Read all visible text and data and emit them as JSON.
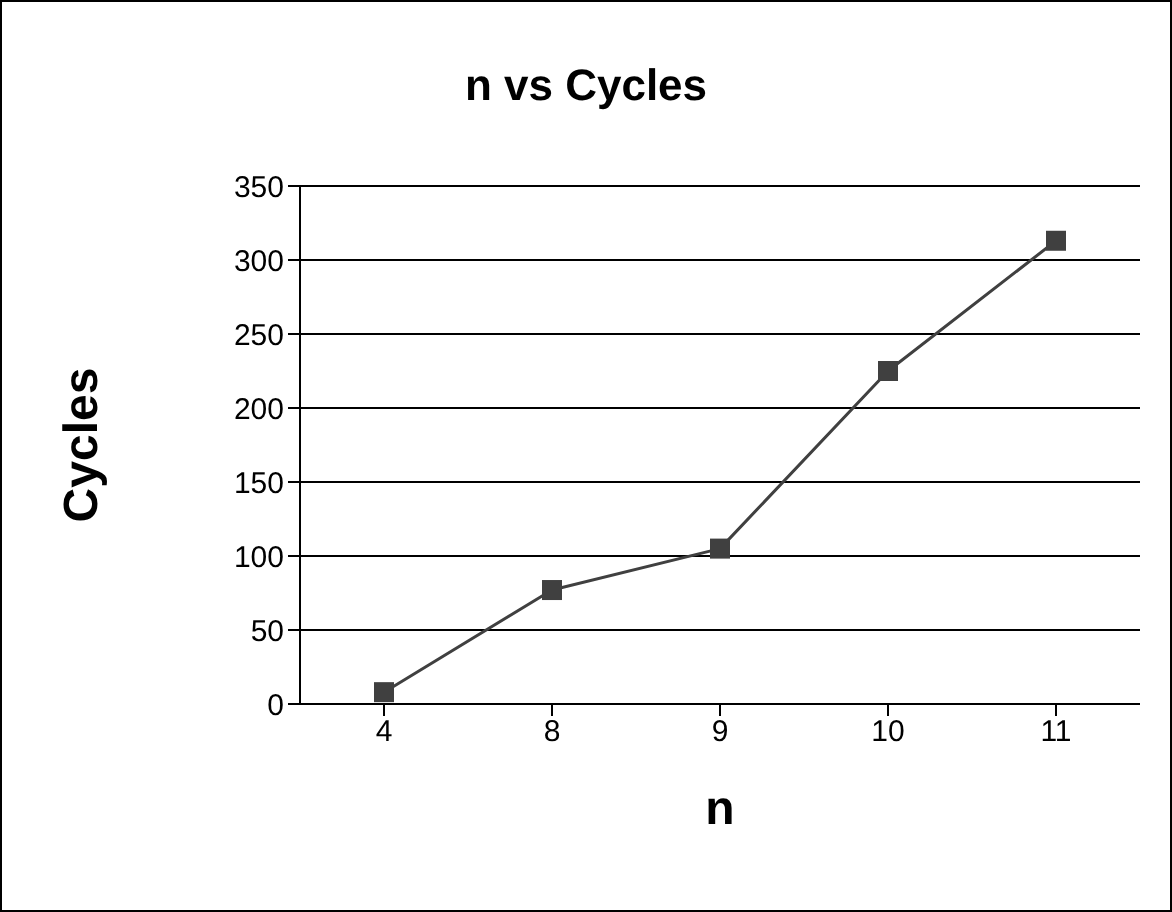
{
  "chart_data": {
    "type": "line",
    "title": "n vs Cycles",
    "xlabel": "n",
    "ylabel": "Cycles",
    "categories": [
      "4",
      "8",
      "9",
      "10",
      "11"
    ],
    "series": [
      {
        "color": "#404040",
        "values": [
          8,
          77,
          105,
          225,
          313
        ]
      }
    ],
    "ylim": [
      0,
      350
    ],
    "yticks": [
      0,
      50,
      100,
      150,
      200,
      250,
      300,
      350
    ],
    "grid": "y",
    "marker": "square",
    "line_style": "solid"
  }
}
